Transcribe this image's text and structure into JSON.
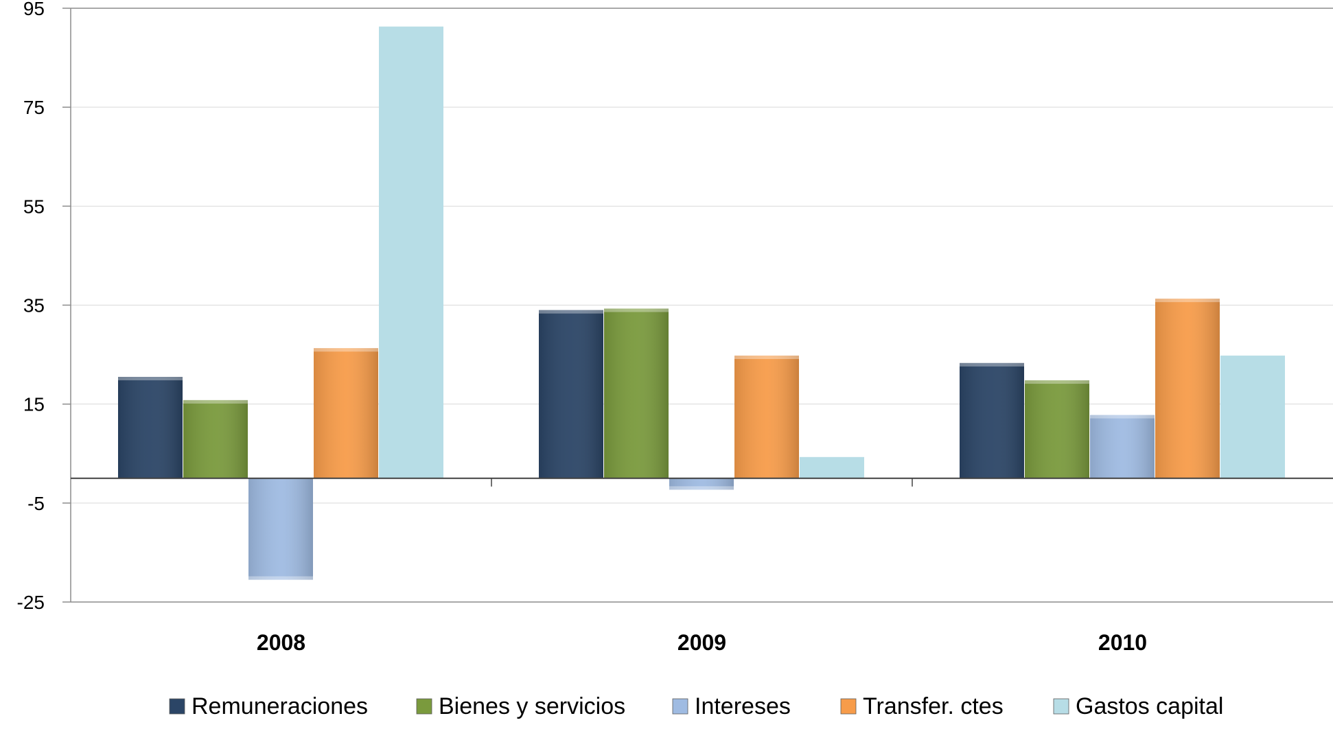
{
  "chart_data": {
    "type": "bar",
    "categories": [
      "2008",
      "2009",
      "2010"
    ],
    "series": [
      {
        "name": "Remuneraciones",
        "values": [
          20.5,
          34,
          23.3
        ],
        "color": "#2b4566"
      },
      {
        "name": "Bienes y servicios",
        "values": [
          15.8,
          34.3,
          19.8
        ],
        "color": "#7a9a3d"
      },
      {
        "name": "Intereses",
        "values": [
          -20.5,
          -2.3,
          12.8
        ],
        "color": "#9fbbe2"
      },
      {
        "name": "Transfer. ctes",
        "values": [
          26.3,
          24.8,
          36.3
        ],
        "color": "#f79c4a"
      },
      {
        "name": "Gastos capital",
        "values": [
          91.3,
          4.3,
          24.8
        ],
        "color": "#b7dde6"
      }
    ],
    "yticks": [
      95,
      75,
      55,
      35,
      15,
      -5,
      -25
    ],
    "ylim": [
      -25,
      95
    ],
    "grid": true,
    "legend": "bottom",
    "title": "",
    "xlabel": "",
    "ylabel": ""
  }
}
